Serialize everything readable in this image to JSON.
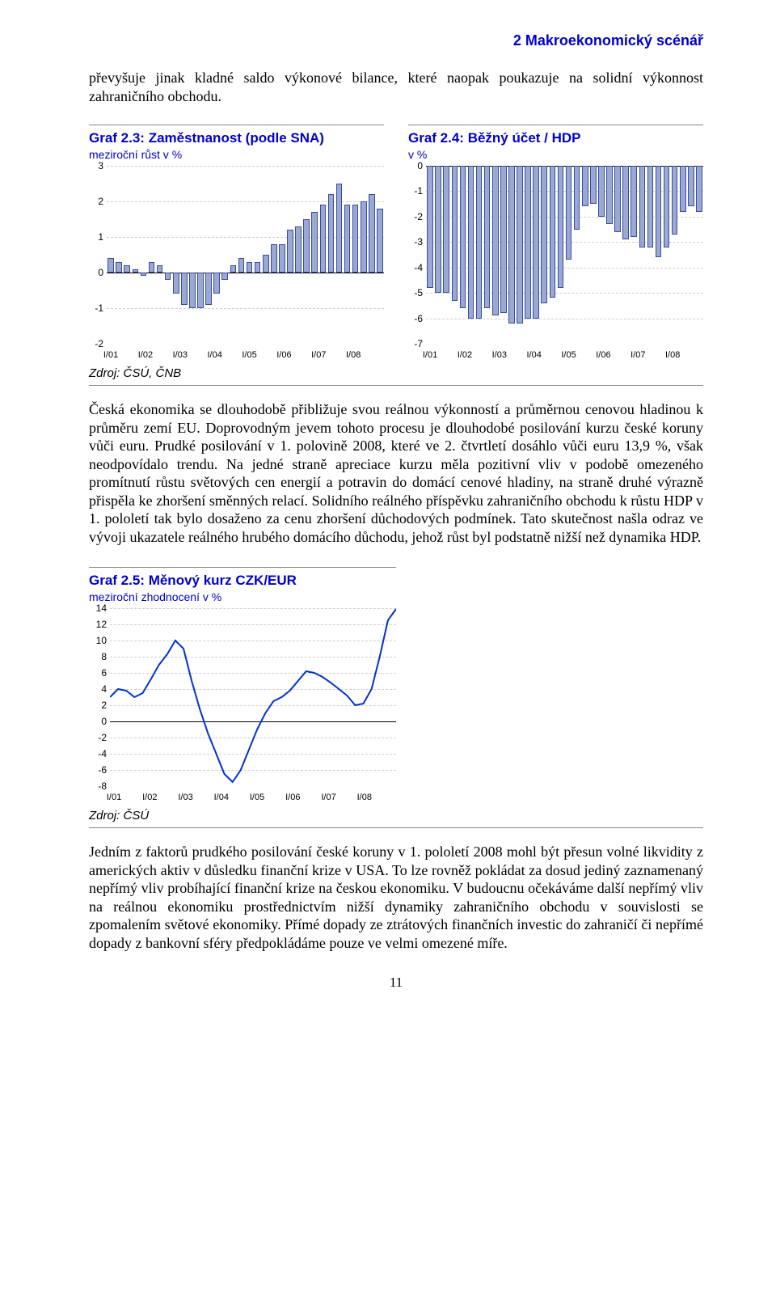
{
  "header": {
    "section": "2 Makroekonomický scénář"
  },
  "intro": "převyšuje jinak kladné saldo výkonové bilance, které naopak poukazuje na solidní výkonnost zahraničního obchodu.",
  "chart23": {
    "type": "bar",
    "title": "Graf 2.3: Zaměstnanost (podle SNA)",
    "subtitle": "meziroční růst v %",
    "ymin": -2,
    "ymax": 3,
    "ystep": 1,
    "xlabels": [
      "I/01",
      "I/02",
      "I/03",
      "I/04",
      "I/05",
      "I/06",
      "I/07",
      "I/08"
    ],
    "values": [
      0.4,
      0.3,
      0.2,
      0.1,
      -0.1,
      0.3,
      0.2,
      -0.2,
      -0.6,
      -0.9,
      -1.0,
      -1.0,
      -0.9,
      -0.6,
      -0.2,
      0.2,
      0.4,
      0.3,
      0.3,
      0.5,
      0.8,
      0.8,
      1.2,
      1.3,
      1.5,
      1.7,
      1.9,
      2.2,
      2.5,
      1.9,
      1.9,
      2.0,
      2.2,
      1.8
    ],
    "bar_fill": "#9aa8d6",
    "bar_border": "#3b4c99",
    "grid_color": "#cfcfcf",
    "background": "#ffffff"
  },
  "chart24": {
    "type": "bar",
    "title": "Graf 2.4: Běžný účet / HDP",
    "subtitle": "v %",
    "ymin": -7,
    "ymax": 0,
    "ystep": 1,
    "xlabels": [
      "I/01",
      "I/02",
      "I/03",
      "I/04",
      "I/05",
      "I/06",
      "I/07",
      "I/08"
    ],
    "values": [
      -4.8,
      -5.0,
      -5.0,
      -5.3,
      -5.6,
      -6.0,
      -6.0,
      -5.6,
      -5.9,
      -5.8,
      -6.2,
      -6.2,
      -6.0,
      -6.0,
      -5.4,
      -5.2,
      -4.8,
      -3.7,
      -2.5,
      -1.6,
      -1.5,
      -2.0,
      -2.3,
      -2.6,
      -2.9,
      -2.8,
      -3.2,
      -3.2,
      -3.6,
      -3.2,
      -2.7,
      -1.8,
      -1.6,
      -1.8
    ],
    "bar_fill": "#9aa8d6",
    "bar_border": "#3b4c99",
    "grid_color": "#cfcfcf",
    "background": "#ffffff"
  },
  "source1": "Zdroj: ČSÚ, ČNB",
  "para1": "Česká ekonomika se dlouhodobě přibližuje svou reálnou výkonností a průměrnou cenovou hladinou k průměru zemí EU. Doprovodným jevem tohoto procesu je dlouhodobé posilování kurzu české koruny vůči euru. Prudké posilování v 1. polovině 2008, které ve 2. čtvrtletí dosáhlo vůči euru 13,9 %, však neodpovídalo trendu. Na jedné straně apreciace kurzu měla pozitivní vliv v podobě omezeného promítnutí růstu světových cen energií a potravin do domácí cenové hladiny, na straně druhé výrazně přispěla ke zhoršení směnných relací. Solidního reálného příspěvku zahraničního obchodu k růstu HDP v 1. pololetí tak bylo dosaženo za cenu zhoršení důchodových podmínek. Tato skutečnost našla odraz ve vývoji ukazatele reálného hrubého domácího důchodu, jehož růst byl podstatně nižší než dynamika HDP.",
  "chart25": {
    "type": "line",
    "title": "Graf 2.5: Měnový kurz CZK/EUR",
    "subtitle": "meziroční zhodnocení v %",
    "ymin": -8,
    "ymax": 14,
    "ystep": 2,
    "xlabels": [
      "I/01",
      "I/02",
      "I/03",
      "I/04",
      "I/05",
      "I/06",
      "I/07",
      "I/08"
    ],
    "values": [
      3.0,
      4.0,
      3.8,
      3.0,
      3.5,
      5.2,
      7.0,
      8.3,
      10.0,
      9.0,
      5.0,
      1.5,
      -1.5,
      -4.0,
      -6.5,
      -7.5,
      -6.0,
      -3.5,
      -1.0,
      1.0,
      2.5,
      3.0,
      3.8,
      5.0,
      6.2,
      6.0,
      5.5,
      4.8,
      4.0,
      3.2,
      2.0,
      2.2,
      4.0,
      8.0,
      12.5,
      13.9
    ],
    "line_color": "#0033cc",
    "grid_color": "#cfcfcf",
    "background": "#ffffff"
  },
  "source2": "Zdroj: ČSÚ",
  "para2": "Jedním z faktorů prudkého posilování české koruny v 1. pololetí 2008 mohl být přesun volné likvidity z amerických aktiv v důsledku finanční krize v USA. To lze rovněž pokládat za dosud jediný zaznamenaný nepřímý vliv probíhající finanční krize na českou ekonomiku. V budoucnu očekáváme další nepřímý vliv na reálnou ekonomiku prostřednictvím nižší dynamiky zahraničního obchodu v souvislosti se zpomalením světové ekonomiky. Přímé dopady ze ztrátových finančních investic do zahraničí či nepřímé dopady z bankovní sféry předpokládáme pouze ve velmi omezené míře.",
  "page_number": "11"
}
